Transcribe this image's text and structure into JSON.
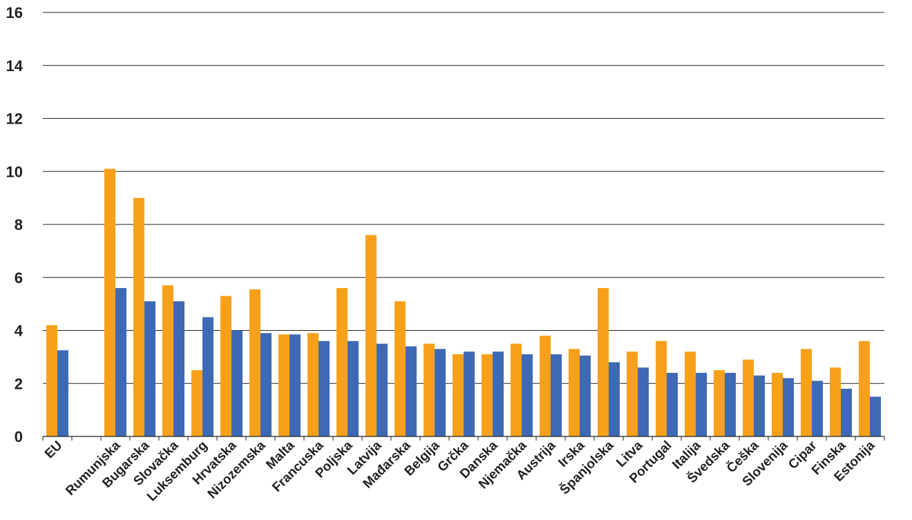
{
  "chart_data": {
    "type": "bar",
    "title": "",
    "xlabel": "",
    "ylabel": "",
    "ylim": [
      0,
      16
    ],
    "yticks": [
      0,
      2,
      4,
      6,
      8,
      10,
      12,
      14,
      16
    ],
    "grid": true,
    "legend": "none",
    "categories": [
      "EU",
      "",
      "Rumunjska",
      "Bugarska",
      "Slovačka",
      "Luksemburg",
      "Hrvatska",
      "Nizozemska",
      "Malta",
      "Francuska",
      "Poljska",
      "Latvija",
      "Mađarska",
      "Belgija",
      "Grčka",
      "Danska",
      "Njemačka",
      "Austrija",
      "Irska",
      "Španjolska",
      "Litva",
      "Portugal",
      "Italija",
      "Švedska",
      "Češka",
      "Slovenija",
      "Cipar",
      "Finska",
      "Estonija"
    ],
    "series": [
      {
        "color": "#f7a11a",
        "values": [
          4.2,
          null,
          10.1,
          9.0,
          5.7,
          2.5,
          5.3,
          5.55,
          3.85,
          3.9,
          5.6,
          7.6,
          5.1,
          3.5,
          3.1,
          3.1,
          3.5,
          3.8,
          3.3,
          5.6,
          3.2,
          3.6,
          3.2,
          2.5,
          2.9,
          2.4,
          3.3,
          2.6,
          3.6
        ]
      },
      {
        "color": "#3e6ab5",
        "values": [
          3.25,
          null,
          5.6,
          5.1,
          5.1,
          4.5,
          4.0,
          3.9,
          3.85,
          3.6,
          3.6,
          3.5,
          3.4,
          3.3,
          3.2,
          3.2,
          3.1,
          3.1,
          3.05,
          2.8,
          2.6,
          2.4,
          2.4,
          2.4,
          2.3,
          2.2,
          2.1,
          1.8,
          1.5
        ]
      }
    ]
  }
}
